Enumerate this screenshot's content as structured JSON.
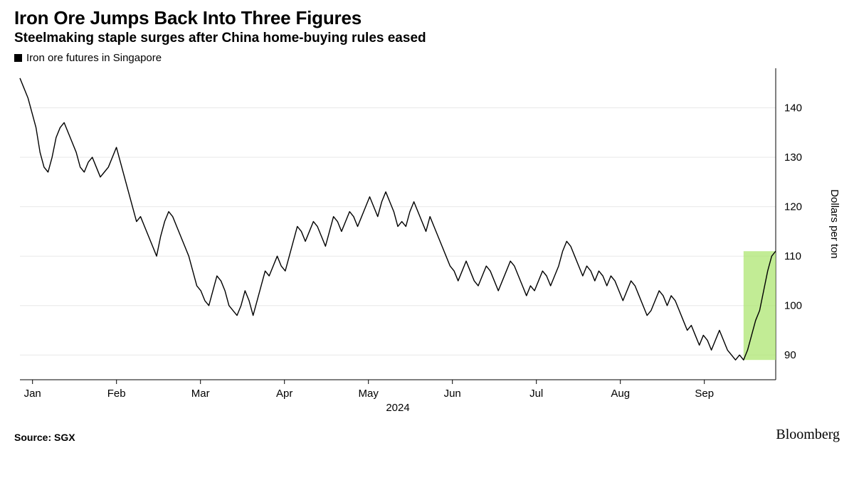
{
  "title": "Iron Ore Jumps Back Into Three Figures",
  "subtitle": "Steelmaking staple surges after China home-buying rules eased",
  "legend": {
    "label": "Iron ore futures in Singapore",
    "swatch_color": "#000000"
  },
  "source": "Source: SGX",
  "brand": "Bloomberg",
  "chart": {
    "type": "line",
    "background_color": "#ffffff",
    "line_color": "#000000",
    "line_width": 1.4,
    "grid_color": "#e8e8e8",
    "axis_text_color": "#000000",
    "tick_fontsize": 15,
    "axis_label_fontsize": 15,
    "y_axis": {
      "label": "Dollars per ton",
      "side": "right",
      "min": 85,
      "max": 148,
      "ticks": [
        90,
        100,
        110,
        120,
        130,
        140
      ]
    },
    "x_axis": {
      "months": [
        "Jan",
        "Feb",
        "Mar",
        "Apr",
        "May",
        "Jun",
        "Jul",
        "Aug",
        "Sep"
      ],
      "year_label": "2024"
    },
    "highlight": {
      "start_index": 180,
      "end_index": 188,
      "fill_color": "#aee571",
      "fill_opacity": 0.75
    },
    "series": [
      146,
      144,
      142,
      139,
      136,
      131,
      128,
      127,
      130,
      134,
      136,
      137,
      135,
      133,
      131,
      128,
      127,
      129,
      130,
      128,
      126,
      127,
      128,
      130,
      132,
      129,
      126,
      123,
      120,
      117,
      118,
      116,
      114,
      112,
      110,
      114,
      117,
      119,
      118,
      116,
      114,
      112,
      110,
      107,
      104,
      103,
      101,
      100,
      103,
      106,
      105,
      103,
      100,
      99,
      98,
      100,
      103,
      101,
      98,
      101,
      104,
      107,
      106,
      108,
      110,
      108,
      107,
      110,
      113,
      116,
      115,
      113,
      115,
      117,
      116,
      114,
      112,
      115,
      118,
      117,
      115,
      117,
      119,
      118,
      116,
      118,
      120,
      122,
      120,
      118,
      121,
      123,
      121,
      119,
      116,
      117,
      116,
      119,
      121,
      119,
      117,
      115,
      118,
      116,
      114,
      112,
      110,
      108,
      107,
      105,
      107,
      109,
      107,
      105,
      104,
      106,
      108,
      107,
      105,
      103,
      105,
      107,
      109,
      108,
      106,
      104,
      102,
      104,
      103,
      105,
      107,
      106,
      104,
      106,
      108,
      111,
      113,
      112,
      110,
      108,
      106,
      108,
      107,
      105,
      107,
      106,
      104,
      106,
      105,
      103,
      101,
      103,
      105,
      104,
      102,
      100,
      98,
      99,
      101,
      103,
      102,
      100,
      102,
      101,
      99,
      97,
      95,
      96,
      94,
      92,
      94,
      93,
      91,
      93,
      95,
      93,
      91,
      90,
      89,
      90,
      89,
      91,
      94,
      97,
      99,
      103,
      107,
      110,
      111
    ]
  }
}
